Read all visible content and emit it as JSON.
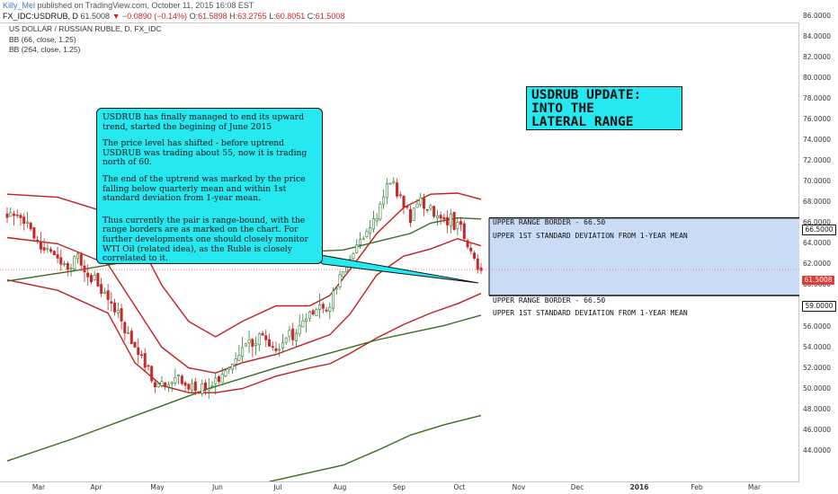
{
  "header": {
    "author": "Killy_Mel",
    "published": "published on TradingView.com, October 11, 2015 16:08 EST",
    "symbol": "FX_IDC:USDRUB, D",
    "ohlc_price": "61.5008",
    "change": "▼ −0.0890 (−0.14%)",
    "open_label": "O:",
    "open": "61.5898",
    "high_label": "H:",
    "high": "63.2755",
    "low_label": "L:",
    "low": "60.8051",
    "close_label": "C:",
    "close": "61.5008"
  },
  "legend": {
    "title": "US DOLLAR / RUSSIAN RUBLE, D, FX_IDC",
    "bb1": "BB (66, close, 1.25)",
    "bb2": "BB (264, close, 1.25)"
  },
  "callout": {
    "p1": "USDRUB has finally managed to end its upward trend, started the begining of June 2015",
    "p2": "The price level has shifted - before uptrend USDRUB was trading about 55, now it is trading north of 60.",
    "p3": "The end of the uptrend was marked by the price falling below quarterly mean and within 1st standard deviation from 1-year mean.",
    "p4": "Thus currently the pair is range-bound, with the range borders are as marked on the chart. For further developments one should closely monitor WTI Oil (related idea), as the Ruble is closely correlated to it."
  },
  "update_box": {
    "line1": "USDRUB UPDATE:",
    "line2": "INTO THE",
    "line3": "LATERAL RANGE"
  },
  "annotations": {
    "upper_label_1": "UPPER RANGE BORDER - 66.50",
    "upper_label_2": "UPPER 1ST STANDARD DEVIATION FROM 1-YEAR MEAN",
    "lower_label_1": "UPPER RANGE BORDER - 66.50",
    "lower_label_2": "UPPER 1ST STANDARD DEVIATION FROM 1-YEAR MEAN",
    "range_fill": "#c9dbf5"
  },
  "price_tags": {
    "top": "66.5000",
    "current": "61.5008",
    "bottom": "59.0000"
  },
  "colors": {
    "up": "#2e7d32",
    "down": "#c62828",
    "bb66": "#c41e1e",
    "bb264": "#3d6b1e",
    "callout": "#26e8f1"
  },
  "chart_data": {
    "type": "candlestick",
    "title": "US DOLLAR / RUSSIAN RUBLE, D, FX_IDC",
    "ylim": [
      43,
      86.5
    ],
    "y_ticks": [
      "44.0000",
      "46.0000",
      "48.0000",
      "50.0000",
      "52.0000",
      "54.0000",
      "56.0000",
      "58.0000",
      "60.0000",
      "62.0000",
      "64.0000",
      "66.0000",
      "68.0000",
      "70.0000",
      "72.0000",
      "74.0000",
      "76.0000",
      "78.0000",
      "80.0000",
      "82.0000",
      "84.0000",
      "86.0000"
    ],
    "x_ticks": [
      {
        "label": "Mar",
        "bold": false
      },
      {
        "label": "Apr",
        "bold": false
      },
      {
        "label": "May",
        "bold": false
      },
      {
        "label": "Jun",
        "bold": false
      },
      {
        "label": "Jul",
        "bold": false
      },
      {
        "label": "Aug",
        "bold": false
      },
      {
        "label": "Sep",
        "bold": false
      },
      {
        "label": "Oct",
        "bold": false
      },
      {
        "label": "Nov",
        "bold": false
      },
      {
        "label": "Dec",
        "bold": false
      },
      {
        "label": "2016",
        "bold": true
      },
      {
        "label": "Feb",
        "bold": false
      },
      {
        "label": "Mar",
        "bold": false
      }
    ],
    "range_upper": 66.5,
    "range_lower": 59.0,
    "last_close": 61.5008,
    "close_path": [
      {
        "t": 0,
        "v": 66.8
      },
      {
        "t": 3,
        "v": 67.2
      },
      {
        "t": 6,
        "v": 65.6
      },
      {
        "t": 9,
        "v": 64.0
      },
      {
        "t": 12,
        "v": 63.1
      },
      {
        "t": 15,
        "v": 62.3
      },
      {
        "t": 18,
        "v": 61.8
      },
      {
        "t": 21,
        "v": 62.7
      },
      {
        "t": 24,
        "v": 61.2
      },
      {
        "t": 27,
        "v": 60.1
      },
      {
        "t": 30,
        "v": 58.4
      },
      {
        "t": 33,
        "v": 57.1
      },
      {
        "t": 36,
        "v": 55.2
      },
      {
        "t": 39,
        "v": 53.3
      },
      {
        "t": 42,
        "v": 51.8
      },
      {
        "t": 45,
        "v": 50.2
      },
      {
        "t": 48,
        "v": 50.9
      },
      {
        "t": 51,
        "v": 51.3
      },
      {
        "t": 54,
        "v": 50.4
      },
      {
        "t": 57,
        "v": 50.0
      },
      {
        "t": 60,
        "v": 49.6
      },
      {
        "t": 63,
        "v": 50.9
      },
      {
        "t": 66,
        "v": 51.6
      },
      {
        "t": 69,
        "v": 53.1
      },
      {
        "t": 72,
        "v": 54.4
      },
      {
        "t": 75,
        "v": 55.2
      },
      {
        "t": 78,
        "v": 54.6
      },
      {
        "t": 81,
        "v": 53.8
      },
      {
        "t": 84,
        "v": 55.1
      },
      {
        "t": 87,
        "v": 55.6
      },
      {
        "t": 90,
        "v": 56.9
      },
      {
        "t": 93,
        "v": 57.6
      },
      {
        "t": 96,
        "v": 58.3
      },
      {
        "t": 99,
        "v": 60.5
      },
      {
        "t": 102,
        "v": 62.6
      },
      {
        "t": 105,
        "v": 63.9
      },
      {
        "t": 108,
        "v": 65.8
      },
      {
        "t": 111,
        "v": 67.6
      },
      {
        "t": 114,
        "v": 70.3
      },
      {
        "t": 117,
        "v": 68.2
      },
      {
        "t": 120,
        "v": 66.4
      },
      {
        "t": 123,
        "v": 68.3
      },
      {
        "t": 126,
        "v": 67.1
      },
      {
        "t": 129,
        "v": 66.0
      },
      {
        "t": 132,
        "v": 66.3
      },
      {
        "t": 135,
        "v": 65.3
      },
      {
        "t": 138,
        "v": 63.1
      },
      {
        "t": 141,
        "v": 61.5
      }
    ],
    "bb66": {
      "upper": [
        [
          0,
          68.8
        ],
        [
          15,
          68.5
        ],
        [
          30,
          67.0
        ],
        [
          38,
          65.0
        ],
        [
          46,
          60.0
        ],
        [
          54,
          56.5
        ],
        [
          62,
          55.0
        ],
        [
          70,
          56.5
        ],
        [
          80,
          58.0
        ],
        [
          90,
          58.0
        ],
        [
          96,
          59.0
        ],
        [
          102,
          61.5
        ],
        [
          110,
          65.0
        ],
        [
          118,
          67.5
        ],
        [
          126,
          68.8
        ],
        [
          134,
          68.9
        ],
        [
          141,
          68.3
        ]
      ],
      "basis": [
        [
          0,
          64.6
        ],
        [
          15,
          64.0
        ],
        [
          30,
          62.0
        ],
        [
          38,
          58.0
        ],
        [
          46,
          54.0
        ],
        [
          54,
          52.0
        ],
        [
          62,
          51.5
        ],
        [
          70,
          52.5
        ],
        [
          80,
          53.3
        ],
        [
          90,
          54.5
        ],
        [
          96,
          55.2
        ],
        [
          102,
          57.2
        ],
        [
          110,
          61.0
        ],
        [
          118,
          62.8
        ],
        [
          126,
          63.5
        ],
        [
          134,
          64.5
        ],
        [
          141,
          63.8
        ]
      ],
      "lower": [
        [
          0,
          60.5
        ],
        [
          15,
          59.5
        ],
        [
          30,
          57.3
        ],
        [
          38,
          52.5
        ],
        [
          46,
          50.3
        ],
        [
          54,
          49.6
        ],
        [
          62,
          49.6
        ],
        [
          70,
          50.0
        ],
        [
          80,
          51.2
        ],
        [
          90,
          52.0
        ],
        [
          96,
          52.4
        ],
        [
          102,
          53.4
        ],
        [
          110,
          54.9
        ],
        [
          118,
          56.2
        ],
        [
          126,
          57.3
        ],
        [
          134,
          58.2
        ],
        [
          141,
          59.2
        ]
      ]
    },
    "bb264": {
      "upper": [
        [
          0,
          60.4
        ],
        [
          20,
          61.4
        ],
        [
          40,
          62.5
        ],
        [
          60,
          62.9
        ],
        [
          80,
          63.1
        ],
        [
          100,
          63.4
        ],
        [
          110,
          64.2
        ],
        [
          120,
          65.0
        ],
        [
          126,
          66.0
        ],
        [
          134,
          66.5
        ],
        [
          141,
          66.4
        ]
      ],
      "basis": [
        [
          0,
          43.0
        ],
        [
          20,
          45.2
        ],
        [
          40,
          47.6
        ],
        [
          60,
          50.0
        ],
        [
          80,
          52.0
        ],
        [
          100,
          53.8
        ],
        [
          110,
          54.7
        ],
        [
          120,
          55.4
        ],
        [
          130,
          56.1
        ],
        [
          141,
          57.1
        ]
      ],
      "lower": [
        [
          78,
          41.0
        ],
        [
          100,
          42.6
        ],
        [
          110,
          44.0
        ],
        [
          120,
          45.5
        ],
        [
          130,
          46.5
        ],
        [
          141,
          47.4
        ]
      ]
    }
  }
}
